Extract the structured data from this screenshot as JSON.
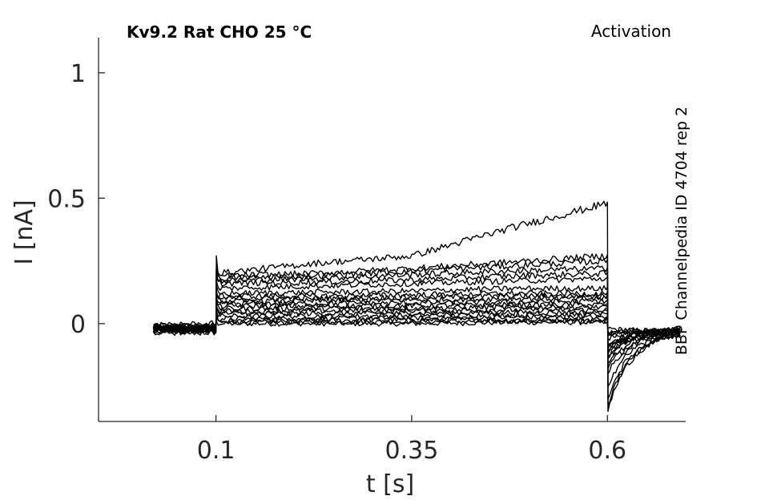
{
  "chart_data": {
    "type": "line",
    "title": "Kv9.2  Rat  CHO  25 °C",
    "subtitle": "Activation",
    "side_label": "BBP Channelpedia ID 4704 rep 2",
    "xlabel": "t [s]",
    "ylabel": "I [nA]",
    "xlim": [
      -0.05,
      0.7
    ],
    "ylim": [
      -0.39,
      1.14
    ],
    "x_ticks": [
      0.1,
      0.35,
      0.6
    ],
    "x_tick_labels": [
      "0.1",
      "0.35",
      "0.6"
    ],
    "y_ticks": [
      0,
      0.5,
      1
    ],
    "y_tick_labels": [
      "0",
      "0.5",
      "1"
    ],
    "grid": false,
    "colors": {
      "trace": "#000000",
      "axis": "#262626"
    },
    "protocol": {
      "start": 0.02,
      "step_on": 0.1,
      "step_off": 0.6,
      "end": 0.695
    },
    "series": [
      {
        "pre": -0.02,
        "peak": 0.01,
        "step": [
          0.0,
          0.0,
          0.0,
          0.005,
          0.005
        ],
        "tail": -0.03,
        "tail_min": -0.02
      },
      {
        "pre": -0.025,
        "peak": 0.02,
        "step": [
          0.005,
          0.005,
          0.008,
          0.01,
          0.01
        ],
        "tail": -0.03,
        "tail_min": -0.03
      },
      {
        "pre": -0.015,
        "peak": 0.03,
        "step": [
          0.01,
          0.012,
          0.015,
          0.015,
          0.018
        ],
        "tail": -0.025,
        "tail_min": -0.04
      },
      {
        "pre": -0.03,
        "peak": 0.04,
        "step": [
          0.02,
          0.02,
          0.022,
          0.025,
          0.025
        ],
        "tail": -0.03,
        "tail_min": -0.05
      },
      {
        "pre": -0.01,
        "peak": 0.05,
        "step": [
          0.03,
          0.03,
          0.032,
          0.035,
          0.035
        ],
        "tail": -0.02,
        "tail_min": -0.06
      },
      {
        "pre": -0.02,
        "peak": 0.06,
        "step": [
          0.04,
          0.04,
          0.042,
          0.045,
          0.045
        ],
        "tail": -0.025,
        "tail_min": -0.08
      },
      {
        "pre": -0.035,
        "peak": 0.07,
        "step": [
          0.05,
          0.05,
          0.052,
          0.055,
          0.055
        ],
        "tail": -0.03,
        "tail_min": -0.09
      },
      {
        "pre": 0.0,
        "peak": 0.08,
        "step": [
          0.06,
          0.06,
          0.062,
          0.065,
          0.065
        ],
        "tail": -0.02,
        "tail_min": -0.1
      },
      {
        "pre": -0.02,
        "peak": 0.09,
        "step": [
          0.07,
          0.07,
          0.072,
          0.075,
          0.075
        ],
        "tail": -0.025,
        "tail_min": -0.1
      },
      {
        "pre": -0.015,
        "peak": 0.1,
        "step": [
          0.08,
          0.08,
          0.082,
          0.085,
          0.09
        ],
        "tail": -0.03,
        "tail_min": -0.11
      },
      {
        "pre": -0.025,
        "peak": 0.11,
        "step": [
          0.09,
          0.09,
          0.095,
          0.1,
          0.1
        ],
        "tail": -0.025,
        "tail_min": -0.12
      },
      {
        "pre": -0.01,
        "peak": 0.12,
        "step": [
          0.1,
          0.1,
          0.105,
          0.11,
          0.11
        ],
        "tail": -0.02,
        "tail_min": -0.13
      },
      {
        "pre": -0.02,
        "peak": 0.13,
        "step": [
          0.11,
          0.11,
          0.115,
          0.12,
          0.12
        ],
        "tail": -0.03,
        "tail_min": -0.14
      },
      {
        "pre": -0.03,
        "peak": 0.15,
        "step": [
          0.12,
          0.125,
          0.13,
          0.14,
          0.14
        ],
        "tail": -0.03,
        "tail_min": -0.16
      },
      {
        "pre": -0.02,
        "peak": 0.17,
        "step": [
          0.14,
          0.15,
          0.16,
          0.17,
          0.18
        ],
        "tail": -0.03,
        "tail_min": -0.18
      },
      {
        "pre": -0.015,
        "peak": 0.18,
        "step": [
          0.16,
          0.165,
          0.175,
          0.19,
          0.2
        ],
        "tail": -0.03,
        "tail_min": -0.2
      },
      {
        "pre": -0.025,
        "peak": 0.2,
        "step": [
          0.17,
          0.18,
          0.195,
          0.21,
          0.22
        ],
        "tail": -0.03,
        "tail_min": -0.25
      },
      {
        "pre": -0.02,
        "peak": 0.21,
        "step": [
          0.18,
          0.19,
          0.21,
          0.23,
          0.25
        ],
        "tail": -0.03,
        "tail_min": -0.3
      },
      {
        "pre": -0.015,
        "peak": 0.22,
        "step": [
          0.19,
          0.2,
          0.22,
          0.245,
          0.27
        ],
        "tail": -0.03,
        "tail_min": -0.33
      },
      {
        "pre": -0.02,
        "peak": 0.27,
        "step": [
          0.2,
          0.24,
          0.27,
          0.38,
          0.48
        ],
        "tail": -0.03,
        "tail_min": -0.35
      }
    ]
  }
}
